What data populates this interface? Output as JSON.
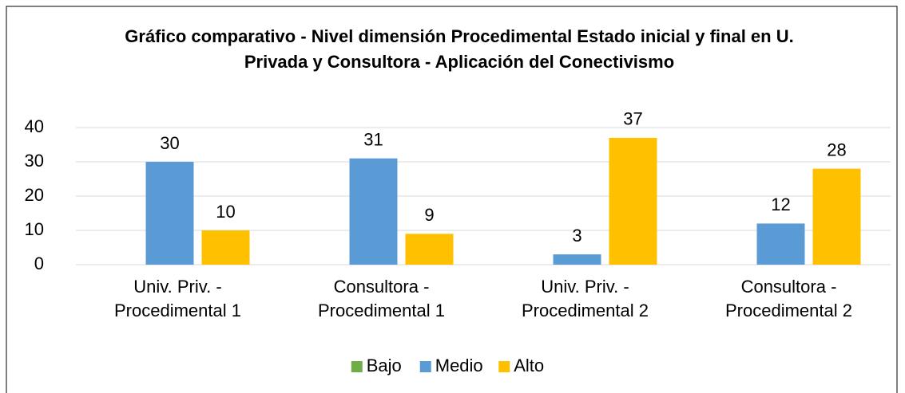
{
  "chart_data": {
    "type": "bar",
    "title": "Gráfico comparativo - Nivel dimensión Procedimental Estado inicial y final en U. Privada y Consultora - Aplicación del Conectivismo",
    "categories": [
      "Univ. Priv. - Procedimental 1",
      "Consultora - Procedimental 1",
      "Univ. Priv. - Procedimental 2",
      "Consultora - Procedimental 2"
    ],
    "series": [
      {
        "name": "Bajo",
        "color": "#70ad47",
        "values": [
          0,
          0,
          0,
          0
        ]
      },
      {
        "name": "Medio",
        "color": "#5b9bd5",
        "values": [
          30,
          31,
          3,
          12
        ]
      },
      {
        "name": "Alto",
        "color": "#ffc000",
        "values": [
          10,
          9,
          37,
          28
        ]
      }
    ],
    "ylim": [
      0,
      40
    ],
    "yticks": [
      0,
      10,
      20,
      30,
      40
    ],
    "grid": true,
    "legend": "bottom"
  }
}
